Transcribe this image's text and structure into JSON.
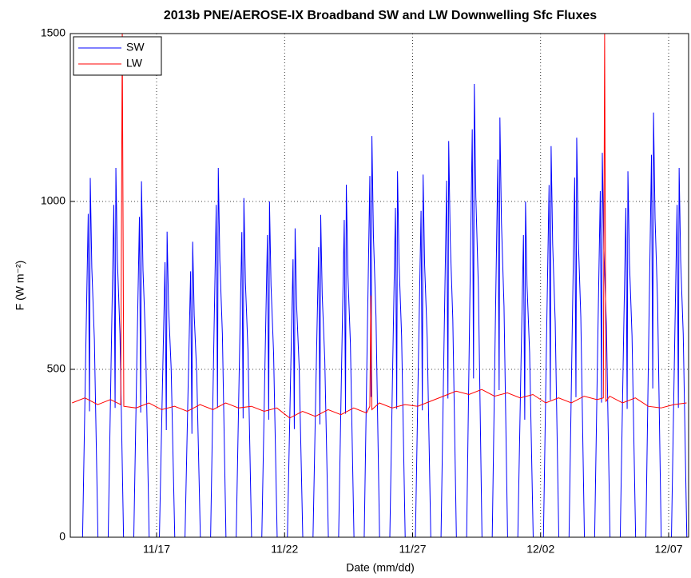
{
  "chart_data": {
    "type": "line",
    "title": "2013b PNE/AEROSE-IX Broadband SW and LW Downwelling Sfc Fluxes",
    "x_label": "Date (mm/dd)",
    "y_label": "F (W m⁻²)",
    "xlim": [
      13.63,
      37.78
    ],
    "xticks": [
      {
        "value": 17,
        "label": "11/17"
      },
      {
        "value": 22,
        "label": "11/22"
      },
      {
        "value": 27,
        "label": "11/27"
      },
      {
        "value": 32,
        "label": "12/02"
      },
      {
        "value": 37,
        "label": "12/07"
      }
    ],
    "ylim": [
      0,
      1500
    ],
    "yticks": [
      0,
      500,
      1000,
      1500
    ],
    "grid": true,
    "legend": "upper left",
    "series": [
      {
        "name": "SW",
        "color": "#0000ff",
        "x": [
          14.11,
          14.23,
          14.33,
          14.38,
          14.41,
          14.47,
          14.57,
          14.71,
          15.11,
          15.23,
          15.33,
          15.38,
          15.41,
          15.47,
          15.57,
          15.71,
          16.11,
          16.23,
          16.33,
          16.38,
          16.41,
          16.47,
          16.57,
          16.71,
          17.11,
          17.23,
          17.33,
          17.38,
          17.41,
          17.47,
          17.57,
          17.71,
          18.11,
          18.23,
          18.33,
          18.38,
          18.41,
          18.47,
          18.57,
          18.71,
          19.11,
          19.23,
          19.33,
          19.38,
          19.41,
          19.47,
          19.57,
          19.71,
          20.11,
          20.23,
          20.33,
          20.38,
          20.41,
          20.47,
          20.57,
          20.71,
          21.11,
          21.23,
          21.33,
          21.38,
          21.41,
          21.47,
          21.57,
          21.71,
          22.11,
          22.23,
          22.33,
          22.38,
          22.41,
          22.47,
          22.57,
          22.71,
          23.11,
          23.23,
          23.33,
          23.38,
          23.41,
          23.47,
          23.57,
          23.71,
          24.11,
          24.23,
          24.33,
          24.38,
          24.41,
          24.47,
          24.57,
          24.71,
          25.11,
          25.23,
          25.33,
          25.38,
          25.41,
          25.47,
          25.57,
          25.71,
          26.11,
          26.23,
          26.33,
          26.38,
          26.41,
          26.47,
          26.57,
          26.71,
          27.11,
          27.23,
          27.33,
          27.38,
          27.41,
          27.47,
          27.57,
          27.71,
          28.11,
          28.23,
          28.33,
          28.38,
          28.41,
          28.47,
          28.57,
          28.71,
          29.11,
          29.23,
          29.33,
          29.38,
          29.41,
          29.47,
          29.57,
          29.71,
          30.11,
          30.23,
          30.33,
          30.38,
          30.41,
          30.47,
          30.57,
          30.71,
          31.11,
          31.23,
          31.33,
          31.38,
          31.41,
          31.47,
          31.57,
          31.71,
          32.11,
          32.23,
          32.33,
          32.38,
          32.41,
          32.47,
          32.57,
          32.71,
          33.11,
          33.23,
          33.33,
          33.38,
          33.41,
          33.47,
          33.57,
          33.71,
          34.11,
          34.23,
          34.33,
          34.38,
          34.41,
          34.47,
          34.57,
          34.71,
          35.11,
          35.23,
          35.33,
          35.38,
          35.41,
          35.47,
          35.57,
          35.71,
          36.11,
          36.23,
          36.33,
          36.38,
          36.41,
          36.47,
          36.57,
          36.71,
          37.11,
          37.23,
          37.33,
          37.38,
          37.41,
          37.47,
          37.57,
          37.71
        ],
        "values": [
          0,
          535,
          963,
          375,
          1070,
          803,
          589,
          0,
          0,
          550,
          990,
          385,
          1100,
          825,
          605,
          0,
          0,
          530,
          954,
          371,
          1060,
          795,
          583,
          0,
          0,
          455,
          819,
          319,
          910,
          683,
          501,
          0,
          0,
          440,
          792,
          308,
          880,
          660,
          484,
          0,
          0,
          550,
          990,
          385,
          1100,
          825,
          605,
          0,
          0,
          505,
          909,
          354,
          1010,
          758,
          556,
          0,
          0,
          500,
          900,
          350,
          1000,
          750,
          550,
          0,
          0,
          460,
          828,
          322,
          920,
          690,
          506,
          0,
          0,
          480,
          864,
          336,
          960,
          720,
          528,
          0,
          0,
          525,
          945,
          368,
          1050,
          788,
          578,
          0,
          0,
          598,
          1076,
          418,
          1195,
          896,
          657,
          0,
          0,
          545,
          981,
          382,
          1090,
          818,
          600,
          0,
          0,
          540,
          972,
          378,
          1080,
          810,
          594,
          0,
          0,
          590,
          1062,
          413,
          1180,
          885,
          649,
          0,
          0,
          675,
          1215,
          473,
          1350,
          1013,
          743,
          0,
          0,
          625,
          1125,
          438,
          1250,
          938,
          688,
          0,
          0,
          500,
          900,
          350,
          1000,
          750,
          550,
          0,
          0,
          583,
          1049,
          408,
          1165,
          874,
          641,
          0,
          0,
          595,
          1071,
          417,
          1190,
          893,
          655,
          0,
          0,
          573,
          1031,
          401,
          1145,
          859,
          630,
          0,
          0,
          545,
          981,
          382,
          1090,
          818,
          600,
          0,
          0,
          633,
          1139,
          443,
          1265,
          949,
          696,
          0,
          0,
          550,
          990,
          385,
          1100,
          825,
          605,
          0
        ]
      },
      {
        "name": "LW",
        "color": "#ff0000",
        "x": [
          13.7,
          14.2,
          14.7,
          15.2,
          15.6,
          15.66,
          15.72,
          16.2,
          16.7,
          17.2,
          17.7,
          18.2,
          18.7,
          19.2,
          19.7,
          20.2,
          20.7,
          21.2,
          21.7,
          22.2,
          22.7,
          23.2,
          23.7,
          24.2,
          24.7,
          25.2,
          25.33,
          25.37,
          25.41,
          25.7,
          26.2,
          26.7,
          27.2,
          27.7,
          28.2,
          28.7,
          29.2,
          29.7,
          30.2,
          30.7,
          31.2,
          31.7,
          32.2,
          32.7,
          33.2,
          33.7,
          34.2,
          34.45,
          34.5,
          34.55,
          34.7,
          35.2,
          35.7,
          36.2,
          36.7,
          37.2,
          37.7
        ],
        "values": [
          400,
          415,
          395,
          410,
          395,
          1500,
          390,
          385,
          400,
          380,
          390,
          375,
          395,
          380,
          400,
          385,
          390,
          375,
          385,
          355,
          375,
          360,
          380,
          365,
          385,
          370,
          390,
          720,
          380,
          400,
          385,
          395,
          390,
          405,
          420,
          435,
          425,
          440,
          420,
          430,
          415,
          425,
          400,
          415,
          400,
          420,
          410,
          415,
          1500,
          405,
          420,
          400,
          415,
          390,
          385,
          395,
          400
        ]
      }
    ]
  }
}
